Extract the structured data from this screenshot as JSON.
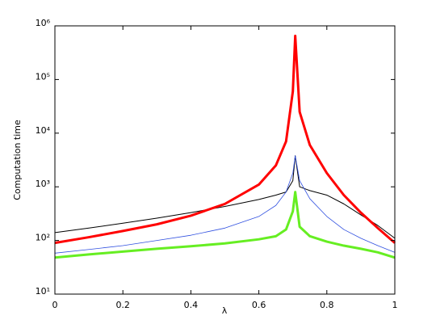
{
  "chart_data": {
    "type": "line",
    "xlabel": "λ",
    "ylabel": "Computation time",
    "x": [
      0,
      0.1,
      0.2,
      0.3,
      0.4,
      0.5,
      0.6,
      0.65,
      0.68,
      0.7,
      0.707,
      0.72,
      0.75,
      0.8,
      0.85,
      0.9,
      0.95,
      1
    ],
    "series": [
      {
        "color": "#000000",
        "width": 1,
        "values": [
          140,
          170,
          210,
          260,
          330,
          430,
          580,
          700,
          800,
          1300,
          3800,
          1000,
          850,
          700,
          480,
          300,
          190,
          110
        ]
      },
      {
        "color": "#3050e0",
        "width": 0.8,
        "values": [
          58,
          68,
          80,
          100,
          125,
          170,
          280,
          450,
          800,
          1800,
          3800,
          1300,
          600,
          280,
          160,
          110,
          80,
          60
        ]
      },
      {
        "color": "#ff0000",
        "width": 3,
        "values": [
          90,
          115,
          150,
          200,
          290,
          480,
          1100,
          2500,
          7000,
          60000,
          650000,
          25000,
          6000,
          1800,
          700,
          330,
          170,
          90
        ]
      },
      {
        "color": "#66ee22",
        "width": 3,
        "values": [
          48,
          55,
          62,
          70,
          78,
          88,
          105,
          120,
          160,
          350,
          800,
          180,
          120,
          95,
          80,
          70,
          60,
          48
        ]
      }
    ],
    "xlim": [
      0,
      1
    ],
    "xticks": [
      0,
      0.2,
      0.4,
      0.6,
      0.8,
      1
    ],
    "ylim": [
      10,
      1000000
    ],
    "ylog": true,
    "yticks": [
      {
        "value": 10,
        "label": "10¹"
      },
      {
        "value": 100,
        "label": "10²"
      },
      {
        "value": 1000,
        "label": "10³"
      },
      {
        "value": 10000,
        "label": "10⁴"
      },
      {
        "value": 100000,
        "label": "10⁵"
      },
      {
        "value": 1000000,
        "label": "10⁶"
      }
    ]
  }
}
